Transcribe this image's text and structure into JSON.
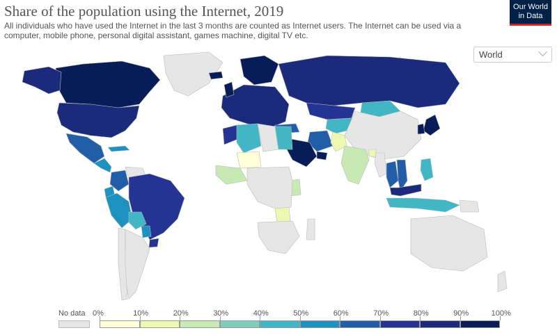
{
  "title": "Share of the population using the Internet, 2019",
  "subtitle": "All individuals who have used the Internet in the last 3 months are counted as Internet users. The Internet can be used via a computer, mobile phone, personal digital assistant, games machine, digital TV etc.",
  "logo": {
    "line1": "Our World",
    "line2": "in Data"
  },
  "region_select": {
    "value": "World"
  },
  "colors": {
    "no_data": "#e6e6e6",
    "bins": [
      "#ffffd9",
      "#edf8b1",
      "#c7e9b4",
      "#7fcdbb",
      "#41b6c4",
      "#1d91c0",
      "#225ea8",
      "#253494",
      "#1b2a7a",
      "#081d58"
    ],
    "ocean": "#ffffff",
    "border": "#bbbbbb"
  },
  "legend": {
    "no_data_label": "No data",
    "ticks": [
      "0%",
      "10%",
      "20%",
      "30%",
      "40%",
      "50%",
      "60%",
      "70%",
      "80%",
      "90%",
      "100%"
    ]
  },
  "chart_data": {
    "type": "choropleth",
    "unit": "%",
    "regions": [
      {
        "name": "Canada",
        "bin": 9
      },
      {
        "name": "Alaska (United States)",
        "bin": 8
      },
      {
        "name": "United States",
        "bin": 8
      },
      {
        "name": "Greenland",
        "bin": null
      },
      {
        "name": "Mexico",
        "bin": 6
      },
      {
        "name": "Central America",
        "bin": 5
      },
      {
        "name": "Cuba",
        "bin": 5
      },
      {
        "name": "Colombia",
        "bin": 6
      },
      {
        "name": "Venezuela",
        "bin": null
      },
      {
        "name": "Ecuador",
        "bin": 5
      },
      {
        "name": "Peru",
        "bin": 5
      },
      {
        "name": "Brazil",
        "bin": 7
      },
      {
        "name": "Bolivia",
        "bin": 4
      },
      {
        "name": "Paraguay",
        "bin": 5
      },
      {
        "name": "Uruguay",
        "bin": 7
      },
      {
        "name": "Argentina",
        "bin": null
      },
      {
        "name": "Chile",
        "bin": null
      },
      {
        "name": "Europe",
        "bin": 8
      },
      {
        "name": "Scandinavia",
        "bin": 9
      },
      {
        "name": "Iceland",
        "bin": 9
      },
      {
        "name": "United Kingdom",
        "bin": 9
      },
      {
        "name": "Russia",
        "bin": 8
      },
      {
        "name": "Kazakhstan",
        "bin": 7
      },
      {
        "name": "Central Asia",
        "bin": 4
      },
      {
        "name": "Mongolia",
        "bin": 4
      },
      {
        "name": "China",
        "bin": null
      },
      {
        "name": "Japan",
        "bin": 9
      },
      {
        "name": "Korea",
        "bin": 9
      },
      {
        "name": "Turkey",
        "bin": 6
      },
      {
        "name": "Iran",
        "bin": 6
      },
      {
        "name": "Saudi Arabia",
        "bin": 9
      },
      {
        "name": "Gulf states",
        "bin": 9
      },
      {
        "name": "Pakistan",
        "bin": 1
      },
      {
        "name": "India",
        "bin": 2
      },
      {
        "name": "Bangladesh",
        "bin": 1
      },
      {
        "name": "Myanmar",
        "bin": null
      },
      {
        "name": "Thailand",
        "bin": 6
      },
      {
        "name": "Vietnam",
        "bin": 6
      },
      {
        "name": "Malaysia",
        "bin": 8
      },
      {
        "name": "Philippines",
        "bin": 4
      },
      {
        "name": "Indonesia",
        "bin": 4
      },
      {
        "name": "Papua New Guinea",
        "bin": null
      },
      {
        "name": "Australia",
        "bin": null
      },
      {
        "name": "New Zealand",
        "bin": null
      },
      {
        "name": "Morocco",
        "bin": 7
      },
      {
        "name": "Algeria",
        "bin": 4
      },
      {
        "name": "Libya",
        "bin": null
      },
      {
        "name": "Egypt",
        "bin": 4
      },
      {
        "name": "Mali",
        "bin": 0
      },
      {
        "name": "West Africa",
        "bin": 2
      },
      {
        "name": "Kenya",
        "bin": 2
      },
      {
        "name": "Zambia",
        "bin": 1
      },
      {
        "name": "Central Africa",
        "bin": null
      },
      {
        "name": "Southern Africa",
        "bin": null
      },
      {
        "name": "Madagascar",
        "bin": null
      }
    ]
  }
}
